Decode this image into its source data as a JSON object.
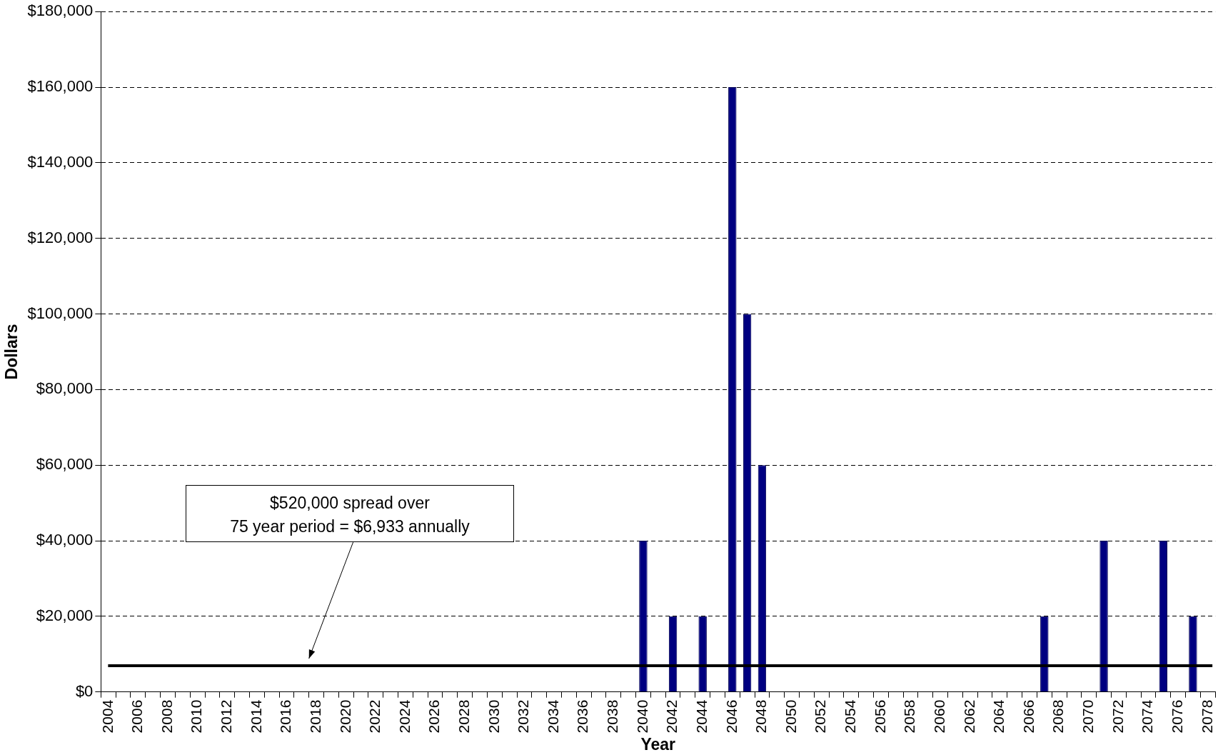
{
  "chart_data": {
    "type": "bar",
    "xlabel": "Year",
    "ylabel": "Dollars",
    "categories": [
      "2004",
      null,
      "2006",
      null,
      "2008",
      null,
      "2010",
      null,
      "2012",
      null,
      "2014",
      null,
      "2016",
      null,
      "2018",
      null,
      "2020",
      null,
      "2022",
      null,
      "2024",
      null,
      "2026",
      null,
      "2028",
      null,
      "2030",
      null,
      "2032",
      null,
      "2034",
      null,
      "2036",
      null,
      "2038",
      null,
      "2040",
      null,
      "2042",
      null,
      "2044",
      null,
      "2046",
      null,
      "2048",
      null,
      "2050",
      null,
      "2052",
      null,
      "2054",
      null,
      "2056",
      null,
      "2058",
      null,
      "2060",
      null,
      "2062",
      null,
      "2064",
      null,
      "2066",
      null,
      "2068",
      null,
      "2070",
      null,
      "2072",
      null,
      "2074",
      null,
      "2076",
      null,
      "2078"
    ],
    "values": [
      0,
      0,
      0,
      0,
      0,
      0,
      0,
      0,
      0,
      0,
      0,
      0,
      0,
      0,
      0,
      0,
      0,
      0,
      0,
      0,
      0,
      0,
      0,
      0,
      0,
      0,
      0,
      0,
      0,
      0,
      0,
      0,
      0,
      0,
      0,
      0,
      40000,
      0,
      20000,
      0,
      20000,
      0,
      160000,
      100000,
      60000,
      0,
      0,
      0,
      0,
      0,
      0,
      0,
      0,
      0,
      0,
      0,
      0,
      0,
      0,
      0,
      0,
      0,
      0,
      20000,
      0,
      0,
      0,
      40000,
      0,
      0,
      0,
      40000,
      0,
      20000,
      0
    ],
    "color": "#000080",
    "ylim": [
      0,
      180000
    ],
    "yticks": [
      {
        "value": 0,
        "label": "$0"
      },
      {
        "value": 20000,
        "label": "$20,000"
      },
      {
        "value": 40000,
        "label": "$40,000"
      },
      {
        "value": 60000,
        "label": "$60,000"
      },
      {
        "value": 80000,
        "label": "$80,000"
      },
      {
        "value": 100000,
        "label": "$100,000"
      },
      {
        "value": 120000,
        "label": "$120,000"
      },
      {
        "value": 140000,
        "label": "$140,000"
      },
      {
        "value": 160000,
        "label": "$160,000"
      },
      {
        "value": 180000,
        "label": "$180,000"
      }
    ],
    "grid": "y",
    "ref_lines": [
      {
        "axis": "y",
        "value": 6933,
        "color": "#000000",
        "line_style": "solid"
      }
    ],
    "annotations": [
      "$520,000 spread over\n75 year period = $6,933 annually"
    ]
  }
}
